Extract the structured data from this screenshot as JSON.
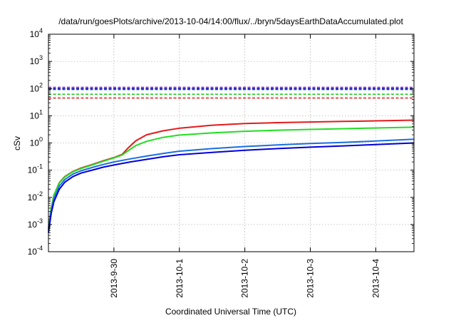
{
  "chart_data": {
    "type": "line",
    "title": "/data/run/goesPlots/archive/2013-10-04/14:00/flux/../bryn/5daysEarthDataAccumulated.plot",
    "xlabel": "Coordinated Universal Time (UTC)",
    "ylabel": "cSv",
    "yscale": "log",
    "ylim": [
      0.0001,
      10000
    ],
    "y_ticks": [
      {
        "value": 0.0001,
        "base": "10",
        "exp": "-4"
      },
      {
        "value": 0.001,
        "base": "10",
        "exp": "-3"
      },
      {
        "value": 0.01,
        "base": "10",
        "exp": "-2"
      },
      {
        "value": 0.1,
        "base": "10",
        "exp": "-1"
      },
      {
        "value": 1,
        "base": "10",
        "exp": "0"
      },
      {
        "value": 10,
        "base": "10",
        "exp": "1"
      },
      {
        "value": 100,
        "base": "10",
        "exp": "2"
      },
      {
        "value": 1000,
        "base": "10",
        "exp": "3"
      },
      {
        "value": 10000,
        "base": "10",
        "exp": "4"
      }
    ],
    "xlim": [
      "2013-09-29 00:00",
      "2013-10-04 14:00"
    ],
    "x_ticks": [
      {
        "value": "2013-09-30 00:00",
        "label": "2013-9-30"
      },
      {
        "value": "2013-10-01 00:00",
        "label": "2013-10-1"
      },
      {
        "value": "2013-10-02 00:00",
        "label": "2013-10-2"
      },
      {
        "value": "2013-10-03 00:00",
        "label": "2013-10-3"
      },
      {
        "value": "2013-10-04 00:00",
        "label": "2013-10-4"
      }
    ],
    "grid": true,
    "series": [
      {
        "color": "#e31a1c",
        "dashed": true,
        "points": [
          [
            "2013-09-29 00:00",
            45
          ],
          [
            "2013-10-04 14:00",
            45
          ]
        ]
      },
      {
        "color": "#22cc22",
        "dashed": true,
        "points": [
          [
            "2013-09-29 00:00",
            62
          ],
          [
            "2013-10-04 14:00",
            62
          ]
        ]
      },
      {
        "color": "#1560d8",
        "dashed": true,
        "points": [
          [
            "2013-09-29 00:00",
            92
          ],
          [
            "2013-10-04 14:00",
            92
          ]
        ]
      },
      {
        "color": "#0a0ab8",
        "dashed": true,
        "points": [
          [
            "2013-09-29 00:00",
            100
          ],
          [
            "2013-10-04 14:00",
            100
          ]
        ]
      },
      {
        "color": "#9933cc",
        "dashed": true,
        "points": [
          [
            "2013-09-29 00:00",
            112
          ],
          [
            "2013-10-04 14:00",
            112
          ]
        ]
      },
      {
        "color": "#e31a1c",
        "dashed": false,
        "points": [
          [
            "2013-09-29 00:00",
            0.0007
          ],
          [
            "2013-09-29 01:00",
            0.004
          ],
          [
            "2013-09-29 02:00",
            0.012
          ],
          [
            "2013-09-29 04:00",
            0.035
          ],
          [
            "2013-09-29 06:00",
            0.058
          ],
          [
            "2013-09-29 09:00",
            0.09
          ],
          [
            "2013-09-29 12:00",
            0.12
          ],
          [
            "2013-09-29 16:00",
            0.16
          ],
          [
            "2013-09-29 20:00",
            0.22
          ],
          [
            "2013-09-30 00:00",
            0.29
          ],
          [
            "2013-09-30 03:00",
            0.38
          ],
          [
            "2013-09-30 05:00",
            0.62
          ],
          [
            "2013-09-30 08:00",
            1.2
          ],
          [
            "2013-09-30 12:00",
            2.0
          ],
          [
            "2013-09-30 18:00",
            2.8
          ],
          [
            "2013-10-01 00:00",
            3.5
          ],
          [
            "2013-10-01 12:00",
            4.5
          ],
          [
            "2013-10-02 00:00",
            5.2
          ],
          [
            "2013-10-02 12:00",
            5.6
          ],
          [
            "2013-10-03 00:00",
            5.9
          ],
          [
            "2013-10-03 12:00",
            6.2
          ],
          [
            "2013-10-04 00:00",
            6.5
          ],
          [
            "2013-10-04 14:00",
            6.9
          ]
        ]
      },
      {
        "color": "#22dd22",
        "dashed": false,
        "points": [
          [
            "2013-09-29 00:00",
            0.0007
          ],
          [
            "2013-09-29 01:00",
            0.004
          ],
          [
            "2013-09-29 02:00",
            0.012
          ],
          [
            "2013-09-29 04:00",
            0.034
          ],
          [
            "2013-09-29 06:00",
            0.056
          ],
          [
            "2013-09-29 09:00",
            0.087
          ],
          [
            "2013-09-29 12:00",
            0.115
          ],
          [
            "2013-09-29 16:00",
            0.155
          ],
          [
            "2013-09-29 20:00",
            0.21
          ],
          [
            "2013-09-30 00:00",
            0.28
          ],
          [
            "2013-09-30 03:00",
            0.36
          ],
          [
            "2013-09-30 05:00",
            0.5
          ],
          [
            "2013-09-30 08:00",
            0.8
          ],
          [
            "2013-09-30 12:00",
            1.15
          ],
          [
            "2013-09-30 18:00",
            1.6
          ],
          [
            "2013-10-01 00:00",
            1.95
          ],
          [
            "2013-10-01 12:00",
            2.35
          ],
          [
            "2013-10-02 00:00",
            2.7
          ],
          [
            "2013-10-02 12:00",
            2.95
          ],
          [
            "2013-10-03 00:00",
            3.15
          ],
          [
            "2013-10-03 12:00",
            3.35
          ],
          [
            "2013-10-04 00:00",
            3.55
          ],
          [
            "2013-10-04 14:00",
            3.8
          ]
        ]
      },
      {
        "color": "#1a6fdf",
        "dashed": false,
        "points": [
          [
            "2013-09-29 00:00",
            0.0006
          ],
          [
            "2013-09-29 01:00",
            0.003
          ],
          [
            "2013-09-29 02:00",
            0.009
          ],
          [
            "2013-09-29 04:00",
            0.026
          ],
          [
            "2013-09-29 06:00",
            0.045
          ],
          [
            "2013-09-29 09:00",
            0.072
          ],
          [
            "2013-09-29 12:00",
            0.095
          ],
          [
            "2013-09-29 16:00",
            0.125
          ],
          [
            "2013-09-29 20:00",
            0.16
          ],
          [
            "2013-09-30 00:00",
            0.2
          ],
          [
            "2013-09-30 06:00",
            0.26
          ],
          [
            "2013-09-30 12:00",
            0.33
          ],
          [
            "2013-09-30 18:00",
            0.41
          ],
          [
            "2013-10-01 00:00",
            0.5
          ],
          [
            "2013-10-01 12:00",
            0.62
          ],
          [
            "2013-10-02 00:00",
            0.74
          ],
          [
            "2013-10-02 12:00",
            0.85
          ],
          [
            "2013-10-03 00:00",
            0.95
          ],
          [
            "2013-10-03 12:00",
            1.05
          ],
          [
            "2013-10-04 00:00",
            1.18
          ],
          [
            "2013-10-04 14:00",
            1.38
          ]
        ]
      },
      {
        "color": "#0000dd",
        "dashed": false,
        "points": [
          [
            "2013-09-29 00:00",
            0.0005
          ],
          [
            "2013-09-29 01:00",
            0.0025
          ],
          [
            "2013-09-29 02:00",
            0.007
          ],
          [
            "2013-09-29 04:00",
            0.02
          ],
          [
            "2013-09-29 06:00",
            0.036
          ],
          [
            "2013-09-29 09:00",
            0.058
          ],
          [
            "2013-09-29 12:00",
            0.078
          ],
          [
            "2013-09-29 16:00",
            0.1
          ],
          [
            "2013-09-29 20:00",
            0.128
          ],
          [
            "2013-09-30 00:00",
            0.155
          ],
          [
            "2013-09-30 06:00",
            0.2
          ],
          [
            "2013-09-30 12:00",
            0.25
          ],
          [
            "2013-09-30 18:00",
            0.31
          ],
          [
            "2013-10-01 00:00",
            0.37
          ],
          [
            "2013-10-01 12:00",
            0.45
          ],
          [
            "2013-10-02 00:00",
            0.54
          ],
          [
            "2013-10-02 12:00",
            0.62
          ],
          [
            "2013-10-03 00:00",
            0.7
          ],
          [
            "2013-10-03 12:00",
            0.78
          ],
          [
            "2013-10-04 00:00",
            0.87
          ],
          [
            "2013-10-04 14:00",
            1.0
          ]
        ]
      }
    ]
  }
}
